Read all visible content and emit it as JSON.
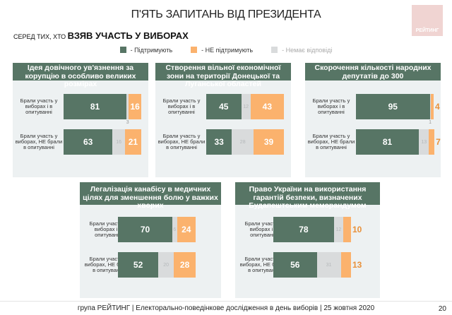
{
  "title": "П'ЯТЬ ЗАПИТАНЬ ВІД ПРЕЗИДЕНТА",
  "logo_text": "РЕЙТИНГ",
  "subtitle_small": "СЕРЕД ТИХ, ХТО ",
  "subtitle_bold": "ВЗЯВ УЧАСТЬ У ВИБОРАХ",
  "legend": [
    {
      "label": "- Підтримують",
      "color": "#577565"
    },
    {
      "label": "- НЕ підтримують",
      "color": "#fbb26d"
    },
    {
      "label": "- Немає відповіді",
      "color": "#d9dbdc"
    }
  ],
  "footer": "група РЕЙТИНГ | Електорально-поведінкове дослідження в день виборів | 25 жовтня 2020",
  "page_number": "20",
  "chart_data": [
    {
      "type": "bar",
      "stacked": true,
      "title": "Ідея довічного ув'язнення за корупцію в особливо великих розмірах",
      "categories": [
        "Брали участь у виборах і в опитуванні",
        "Брали участь у виборах, НЕ брали в опитуванні"
      ],
      "series": [
        {
          "name": "Підтримують",
          "values": [
            81,
            63
          ]
        },
        {
          "name": "Немає відповіді",
          "values": [
            3,
            16
          ]
        },
        {
          "name": "НЕ підтримують",
          "values": [
            16,
            21
          ]
        }
      ]
    },
    {
      "type": "bar",
      "stacked": true,
      "title": "Створення вільної економічної зони на території Донецької та Луганської областей",
      "categories": [
        "Брали участь у виборах і в опитуванні",
        "Брали участь у виборах, НЕ брали в опитуванні"
      ],
      "series": [
        {
          "name": "Підтримують",
          "values": [
            45,
            33
          ]
        },
        {
          "name": "Немає відповіді",
          "values": [
            12,
            28
          ]
        },
        {
          "name": "НЕ підтримують",
          "values": [
            43,
            39
          ]
        }
      ]
    },
    {
      "type": "bar",
      "stacked": true,
      "title": "Скорочення кількості народних депутатів до 300",
      "categories": [
        "Брали участь у виборах і в опитуванні",
        "Брали участь у виборах, НЕ брали в опитуванні"
      ],
      "series": [
        {
          "name": "Підтримують",
          "values": [
            95,
            81
          ]
        },
        {
          "name": "Немає відповіді",
          "values": [
            1,
            13
          ]
        },
        {
          "name": "НЕ підтримують",
          "values": [
            4,
            7
          ]
        }
      ]
    },
    {
      "type": "bar",
      "stacked": true,
      "title": "Легалізація канабісу в медичних цілях для зменшення болю у важких хворих",
      "categories": [
        "Брали участь у виборах і в опитуванні",
        "Брали участь у виборах, НЕ брали в опитуванні"
      ],
      "series": [
        {
          "name": "Підтримують",
          "values": [
            70,
            52
          ]
        },
        {
          "name": "Немає відповіді",
          "values": [
            6,
            20
          ]
        },
        {
          "name": "НЕ підтримують",
          "values": [
            24,
            28
          ]
        }
      ]
    },
    {
      "type": "bar",
      "stacked": true,
      "title": "Право України на використання гарантій безпеки, визначених Будапештським меморандумом",
      "categories": [
        "Брали участь у виборах і в опитуванні",
        "Брали участь у виборах, НЕ брали в опитуванні"
      ],
      "series": [
        {
          "name": "Підтримують",
          "values": [
            78,
            56
          ]
        },
        {
          "name": "Немає відповіді",
          "values": [
            12,
            31
          ]
        },
        {
          "name": "НЕ підтримують",
          "values": [
            10,
            13
          ]
        }
      ]
    }
  ]
}
